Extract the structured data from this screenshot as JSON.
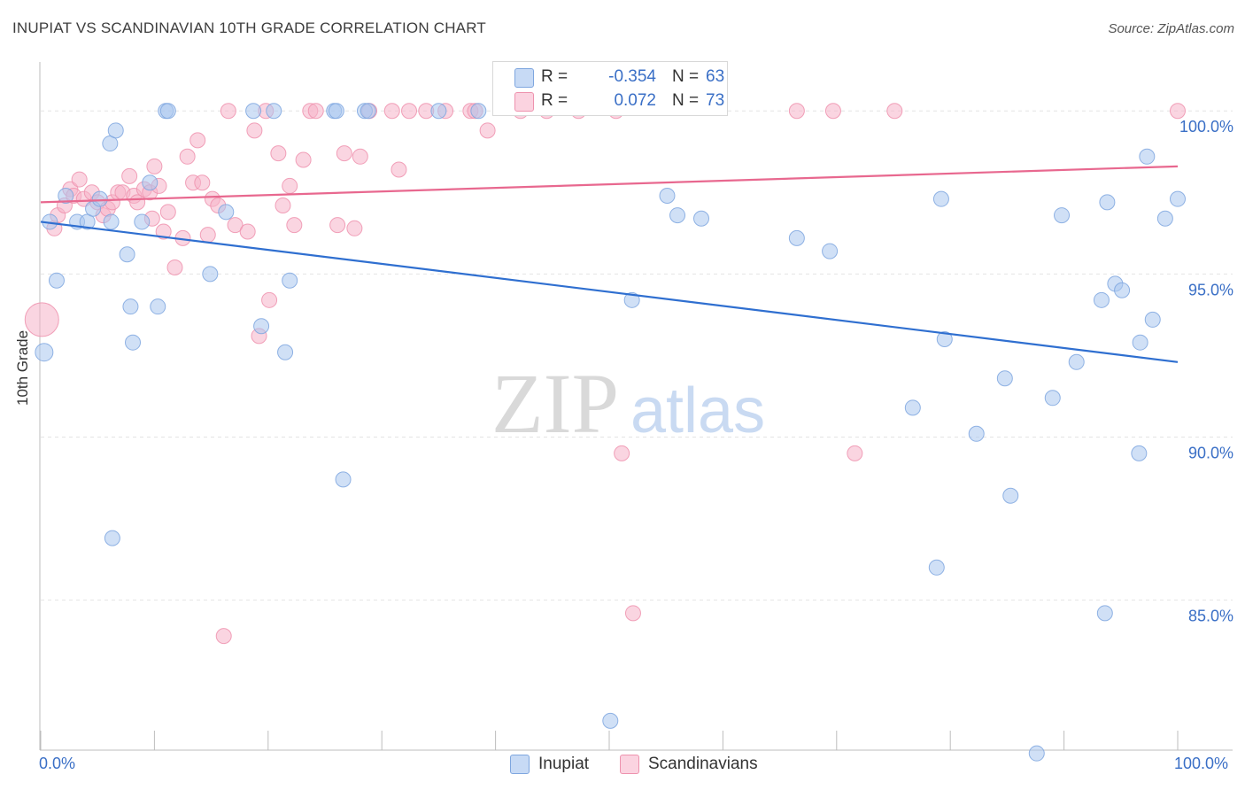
{
  "header": {
    "title": "INUPIAT VS SCANDINAVIAN 10TH GRADE CORRELATION CHART",
    "source": "Source: ZipAtlas.com"
  },
  "watermark": {
    "zip": "ZIP",
    "atlas": "atlas"
  },
  "legend": {
    "rows": [
      {
        "r_label": "R =",
        "r_value": "-0.354",
        "n_label": "N =",
        "n_value": "63",
        "color": "#a9c6ee"
      },
      {
        "r_label": "R =",
        "r_value": "0.072",
        "n_label": "N =",
        "n_value": "73",
        "color": "#f5b3c8"
      }
    ]
  },
  "bottom_legend": {
    "inupiat": "Inupiat",
    "scandinavians": "Scandinavians"
  },
  "colors": {
    "blue_fill": "#a9c6ee",
    "blue_stroke": "#7ea6df",
    "blue_line": "#2f6fd0",
    "pink_fill": "#f5b3c8",
    "pink_stroke": "#ee92ae",
    "pink_line": "#e8688f",
    "axis_text": "#3a6fc6",
    "grid": "#e4e4e4"
  },
  "chart_data": {
    "type": "scatter",
    "title": "INUPIAT VS SCANDINAVIAN 10TH GRADE CORRELATION CHART",
    "xlabel": "",
    "ylabel": "10th Grade",
    "xlim": [
      0,
      100
    ],
    "ylim": [
      80.4,
      101.5
    ],
    "x_tick_labels": [
      "0.0%",
      "100.0%"
    ],
    "y_ticks": [
      85,
      90,
      95,
      100
    ],
    "y_tick_labels": [
      "85.0%",
      "90.0%",
      "95.0%",
      "100.0%"
    ],
    "grid": true,
    "legend_position": "top-center",
    "series": [
      {
        "name": "Inupiat",
        "r": -0.354,
        "n": 63,
        "trend": {
          "x": [
            0,
            100
          ],
          "y": [
            96.6,
            92.3
          ]
        },
        "points": [
          [
            0.3,
            92.6
          ],
          [
            0.8,
            96.6
          ],
          [
            1.4,
            94.8
          ],
          [
            2.2,
            97.4
          ],
          [
            3.2,
            96.6
          ],
          [
            4.1,
            96.6
          ],
          [
            4.6,
            97.0
          ],
          [
            5.2,
            97.3
          ],
          [
            6.1,
            99.0
          ],
          [
            6.2,
            96.6
          ],
          [
            6.3,
            86.9
          ],
          [
            6.6,
            99.4
          ],
          [
            7.6,
            95.6
          ],
          [
            7.9,
            94.0
          ],
          [
            8.1,
            92.9
          ],
          [
            8.9,
            96.6
          ],
          [
            9.6,
            97.8
          ],
          [
            10.3,
            94.0
          ],
          [
            11.0,
            100.0
          ],
          [
            11.2,
            100.0
          ],
          [
            14.9,
            95.0
          ],
          [
            16.3,
            96.9
          ],
          [
            18.7,
            100.0
          ],
          [
            19.4,
            93.4
          ],
          [
            20.5,
            100.0
          ],
          [
            21.5,
            92.6
          ],
          [
            21.9,
            94.8
          ],
          [
            25.8,
            100.0
          ],
          [
            26.0,
            100.0
          ],
          [
            26.6,
            88.7
          ],
          [
            28.5,
            100.0
          ],
          [
            28.8,
            100.0
          ],
          [
            35.0,
            100.0
          ],
          [
            38.5,
            100.0
          ],
          [
            50.1,
            81.3
          ],
          [
            52.0,
            94.2
          ],
          [
            55.1,
            97.4
          ],
          [
            56.0,
            96.8
          ],
          [
            58.1,
            96.7
          ],
          [
            66.5,
            96.1
          ],
          [
            69.4,
            95.7
          ],
          [
            76.7,
            90.9
          ],
          [
            78.8,
            86.0
          ],
          [
            79.2,
            97.3
          ],
          [
            79.5,
            93.0
          ],
          [
            82.3,
            90.1
          ],
          [
            84.8,
            91.8
          ],
          [
            85.3,
            88.2
          ],
          [
            87.6,
            80.3
          ],
          [
            89.0,
            91.2
          ],
          [
            89.8,
            96.8
          ],
          [
            91.1,
            92.3
          ],
          [
            93.3,
            94.2
          ],
          [
            93.6,
            84.6
          ],
          [
            93.8,
            97.2
          ],
          [
            94.5,
            94.7
          ],
          [
            95.1,
            94.5
          ],
          [
            96.6,
            89.5
          ],
          [
            96.7,
            92.9
          ],
          [
            97.3,
            98.6
          ],
          [
            97.8,
            93.6
          ],
          [
            98.9,
            96.7
          ],
          [
            100.0,
            97.3
          ]
        ]
      },
      {
        "name": "Scandinavians",
        "r": 0.072,
        "n": 73,
        "trend": {
          "x": [
            0,
            100
          ],
          "y": [
            97.2,
            98.3
          ]
        },
        "points": [
          [
            0.1,
            93.6
          ],
          [
            1.2,
            96.4
          ],
          [
            1.5,
            96.8
          ],
          [
            2.1,
            97.1
          ],
          [
            2.6,
            97.6
          ],
          [
            2.9,
            97.4
          ],
          [
            3.4,
            97.9
          ],
          [
            3.8,
            97.3
          ],
          [
            4.5,
            97.5
          ],
          [
            5.0,
            97.2
          ],
          [
            5.5,
            96.8
          ],
          [
            5.9,
            97.0
          ],
          [
            6.3,
            97.2
          ],
          [
            6.8,
            97.5
          ],
          [
            7.2,
            97.5
          ],
          [
            7.8,
            98.0
          ],
          [
            8.2,
            97.4
          ],
          [
            8.5,
            97.2
          ],
          [
            9.1,
            97.6
          ],
          [
            9.6,
            97.5
          ],
          [
            9.8,
            96.7
          ],
          [
            10.0,
            98.3
          ],
          [
            10.4,
            97.7
          ],
          [
            10.8,
            96.3
          ],
          [
            11.2,
            96.9
          ],
          [
            11.8,
            95.2
          ],
          [
            12.5,
            96.1
          ],
          [
            12.9,
            98.6
          ],
          [
            13.4,
            97.8
          ],
          [
            13.8,
            99.1
          ],
          [
            14.2,
            97.8
          ],
          [
            14.7,
            96.2
          ],
          [
            15.1,
            97.3
          ],
          [
            15.6,
            97.1
          ],
          [
            16.1,
            83.9
          ],
          [
            16.5,
            100.0
          ],
          [
            17.1,
            96.5
          ],
          [
            18.2,
            96.3
          ],
          [
            18.8,
            99.4
          ],
          [
            19.2,
            93.1
          ],
          [
            19.8,
            100.0
          ],
          [
            20.1,
            94.2
          ],
          [
            20.9,
            98.7
          ],
          [
            21.3,
            97.1
          ],
          [
            21.9,
            97.7
          ],
          [
            22.3,
            96.5
          ],
          [
            23.1,
            98.5
          ],
          [
            23.7,
            100.0
          ],
          [
            24.2,
            100.0
          ],
          [
            26.1,
            96.5
          ],
          [
            26.7,
            98.7
          ],
          [
            27.6,
            96.4
          ],
          [
            28.1,
            98.6
          ],
          [
            28.9,
            100.0
          ],
          [
            30.9,
            100.0
          ],
          [
            31.5,
            98.2
          ],
          [
            32.4,
            100.0
          ],
          [
            33.9,
            100.0
          ],
          [
            35.6,
            100.0
          ],
          [
            37.8,
            100.0
          ],
          [
            38.2,
            100.0
          ],
          [
            39.3,
            99.4
          ],
          [
            42.2,
            100.0
          ],
          [
            44.5,
            100.0
          ],
          [
            47.3,
            100.0
          ],
          [
            50.6,
            100.0
          ],
          [
            51.1,
            89.5
          ],
          [
            52.1,
            84.6
          ],
          [
            66.5,
            100.0
          ],
          [
            69.7,
            100.0
          ],
          [
            71.6,
            89.5
          ],
          [
            75.1,
            100.0
          ],
          [
            100.0,
            100.0
          ]
        ]
      }
    ]
  }
}
